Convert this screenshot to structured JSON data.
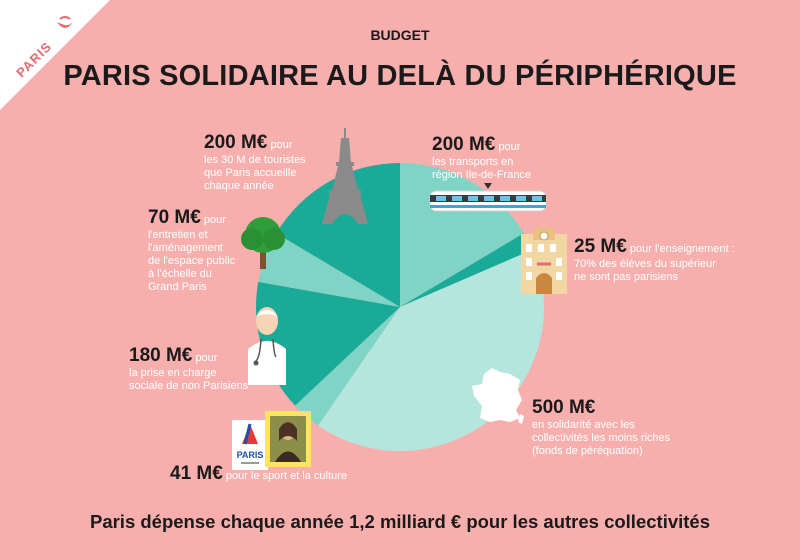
{
  "header": {
    "corner_label": "PARIS",
    "kicker": "BUDGET",
    "title": "PARIS SOLIDAIRE AU DELÀ DU PÉRIPHÉRIQUE"
  },
  "footer": {
    "text": "Paris dépense chaque année 1,2 milliard € pour les autres collectivités"
  },
  "labels": {
    "transports": {
      "amount": "200 M€",
      "pour": "pour",
      "desc": [
        "les transports en",
        "région Ile-de-France"
      ]
    },
    "enseignement": {
      "amount": "25 M€",
      "pour": "pour l'enseignement :",
      "desc": [
        "70% des élèves du supérieur",
        "ne sont pas parisiens"
      ]
    },
    "perequation": {
      "amount": "500 M€",
      "pour": "",
      "desc": [
        "en solidarité avec les",
        "collectivités les moins riches",
        "(fonds de péréquation)"
      ]
    },
    "sport": {
      "amount": "41 M€",
      "pour": "pour le sport et la culture",
      "desc": []
    },
    "sociale": {
      "amount": "180 M€",
      "pour": "pour",
      "desc": [
        "la prise en charge",
        "sociale de non Parisiens"
      ]
    },
    "espace": {
      "amount": "70 M€",
      "pour": "pour",
      "desc": [
        "l'entretien et",
        "l'aménagement",
        "de l'espace public",
        "à l'échelle du",
        "Grand Paris"
      ]
    },
    "touristes": {
      "amount": "200 M€",
      "pour": "pour",
      "desc": [
        "les 30 M de touristes",
        "que Paris accueille",
        "chaque année"
      ]
    }
  },
  "icons": [
    "eiffel-tower-icon",
    "tram-icon",
    "school-building-icon",
    "france-map-icon",
    "olympic-logo-icon",
    "mona-lisa-painting-icon",
    "doctor-icon",
    "tree-icon",
    "paris-logo-icon"
  ],
  "colors": {
    "background": "#f7afae",
    "teal_dark": "#1aab98",
    "teal_mid": "#7fd4c6",
    "teal_light": "#b5e6dd"
  },
  "chart_data": {
    "type": "pie",
    "title": "PARIS SOLIDAIRE AU DELÀ DU PÉRIPHÉRIQUE",
    "unit": "M€",
    "total_label": "1,2 milliard €",
    "slices": [
      {
        "name": "transports en région Ile-de-France",
        "value": 200,
        "color": "#7fd4c6"
      },
      {
        "name": "enseignement",
        "value": 25,
        "color": "#1aab98"
      },
      {
        "name": "fonds de péréquation",
        "value": 500,
        "color": "#b5e6dd"
      },
      {
        "name": "sport et culture",
        "value": 41,
        "color": "#7fd4c6"
      },
      {
        "name": "prise en charge sociale",
        "value": 180,
        "color": "#1aab98"
      },
      {
        "name": "espace public Grand Paris",
        "value": 70,
        "color": "#7fd4c6"
      },
      {
        "name": "touristes",
        "value": 200,
        "color": "#1aab98"
      }
    ],
    "start": "top, clockwise"
  }
}
